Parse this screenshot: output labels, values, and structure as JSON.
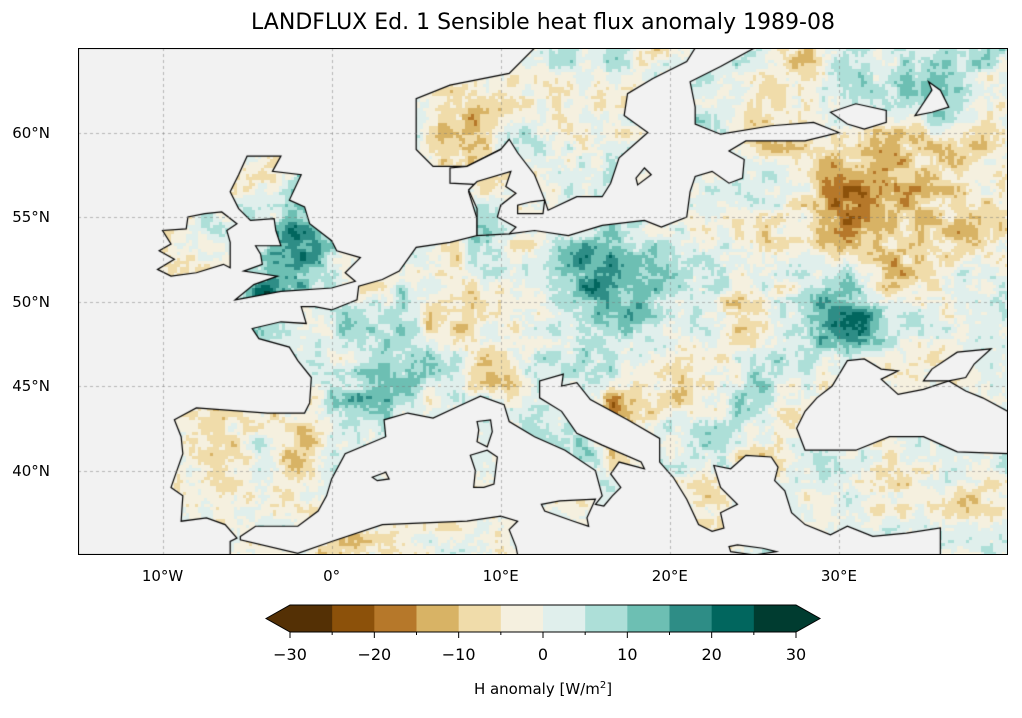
{
  "title": "LANDFLUX Ed. 1 Sensible heat flux anomaly 1989-08",
  "map": {
    "extent_lon": [
      -15,
      40
    ],
    "extent_lat": [
      35,
      65
    ],
    "lon_ticks": [
      {
        "value": -10,
        "label": "10°W"
      },
      {
        "value": 0,
        "label": "0°"
      },
      {
        "value": 10,
        "label": "10°E"
      },
      {
        "value": 20,
        "label": "20°E"
      },
      {
        "value": 30,
        "label": "30°E"
      }
    ],
    "lat_ticks": [
      {
        "value": 60,
        "label": "60°N"
      },
      {
        "value": 55,
        "label": "55°N"
      },
      {
        "value": 50,
        "label": "50°N"
      },
      {
        "value": 45,
        "label": "45°N"
      },
      {
        "value": 40,
        "label": "40°N"
      }
    ],
    "sea_color": "#f2f2f2"
  },
  "colorbar": {
    "min": -30,
    "max": 30,
    "step": 5,
    "extend": "both",
    "colors": [
      "#543005",
      "#8c510a",
      "#b6782a",
      "#d8b365",
      "#f0dcaa",
      "#f5f0df",
      "#e0efec",
      "#addfd8",
      "#6dbfb3",
      "#2e8d86",
      "#01665e",
      "#003c30"
    ],
    "under_color": "#543005",
    "over_color": "#003c30",
    "ticks": [
      {
        "value": -30,
        "label": "−30"
      },
      {
        "value": -20,
        "label": "−20"
      },
      {
        "value": -10,
        "label": "−10"
      },
      {
        "value": 0,
        "label": "0"
      },
      {
        "value": 10,
        "label": "10"
      },
      {
        "value": 20,
        "label": "20"
      },
      {
        "value": 30,
        "label": "30"
      }
    ],
    "label_prefix": "H anomaly [W/m",
    "label_sup": "2",
    "label_suffix": "]"
  }
}
